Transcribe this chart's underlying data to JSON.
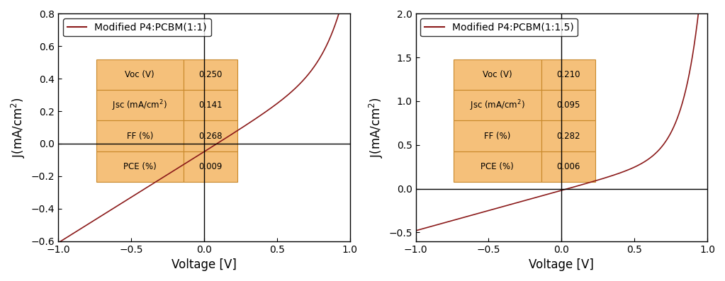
{
  "plot1": {
    "title": "Modified P4:PCBM(1:1)",
    "xlabel": "Voltage [V]",
    "ylabel": "J(mA/cm²)",
    "xlim": [
      -1.0,
      1.0
    ],
    "ylim": [
      -0.6,
      0.8
    ],
    "yticks": [
      -0.6,
      -0.4,
      -0.2,
      0.0,
      0.2,
      0.4,
      0.6,
      0.8
    ],
    "xticks": [
      -1.0,
      -0.5,
      0.0,
      0.5,
      1.0
    ],
    "line_color": "#8B1A1A",
    "curve": {
      "I0": 0.0005,
      "n": 5.5,
      "Iph": 0.05,
      "Gsh": 0.56
    },
    "table": {
      "rows": [
        "Voc (V)",
        "Jsc (mA/cm²)",
        "FF (%)",
        "PCE (%)"
      ],
      "values": [
        "0.250",
        "0.141",
        "0.268",
        "0.009"
      ],
      "bg_color": "#F5C07A",
      "border_color": "#C8882A"
    }
  },
  "plot2": {
    "title": "Modified P4:PCBM(1:1.5)",
    "xlabel": "Voltage [V]",
    "ylabel": "J(mA/cm²)",
    "xlim": [
      -1.0,
      1.0
    ],
    "ylim": [
      -0.6,
      2.0
    ],
    "yticks": [
      -0.5,
      0.0,
      0.5,
      1.0,
      1.5,
      2.0
    ],
    "xticks": [
      -1.0,
      -0.5,
      0.0,
      0.5,
      1.0
    ],
    "line_color": "#8B1A1A",
    "curve": {
      "I0": 0.0005,
      "n": 4.5,
      "Iph": 0.02,
      "Gsh": 0.46
    },
    "table": {
      "rows": [
        "Voc (V)",
        "Jsc (mA/cm²)",
        "FF (%)",
        "PCE (%)"
      ],
      "values": [
        "0.210",
        "0.095",
        "0.282",
        "0.006"
      ],
      "bg_color": "#F5C07A",
      "border_color": "#C8882A"
    }
  }
}
